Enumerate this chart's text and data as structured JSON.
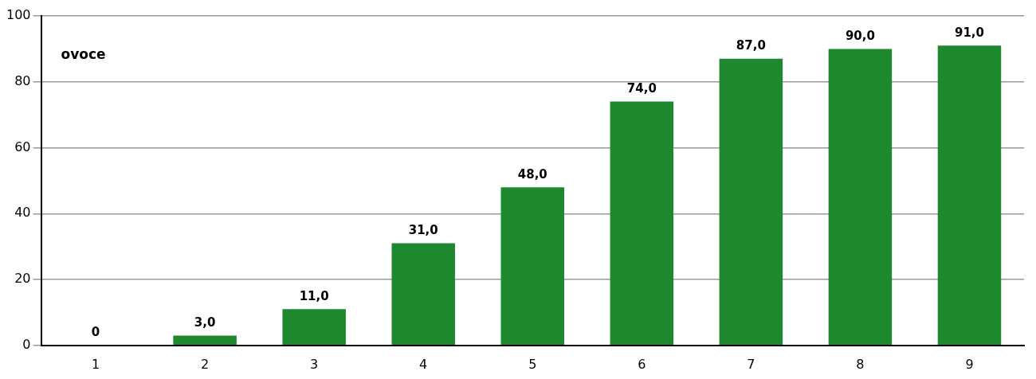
{
  "chart_data": {
    "type": "bar",
    "title": "ovoce",
    "categories": [
      "1",
      "2",
      "3",
      "4",
      "5",
      "6",
      "7",
      "8",
      "9"
    ],
    "values": [
      0,
      3,
      11,
      31,
      48,
      74,
      87,
      90,
      91
    ],
    "value_labels": [
      "0",
      "3,0",
      "11,0",
      "31,0",
      "48,0",
      "74,0",
      "87,0",
      "90,0",
      "91,0"
    ],
    "color": "#1e882e",
    "ylim": [
      0,
      100
    ],
    "yticks": [
      0,
      20,
      40,
      60,
      80,
      100
    ],
    "grid": "y",
    "legend": false
  }
}
